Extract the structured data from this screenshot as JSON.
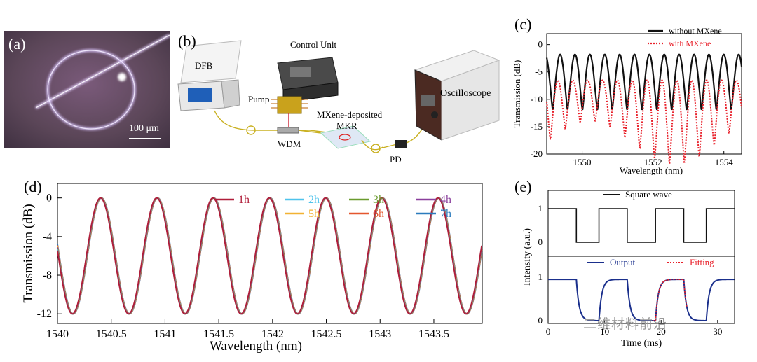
{
  "panel_labels": {
    "a": "(a)",
    "b": "(b)",
    "c": "(c)",
    "d": "(d)",
    "e": "(e)"
  },
  "micrograph": {
    "scale_text": "100 μm"
  },
  "setup": {
    "dfb": "DFB",
    "control_unit": "Control Unit",
    "pump": "Pump",
    "wdm": "WDM",
    "mkr_line1": "MXene-deposited",
    "mkr_line2": "MKR",
    "pd": "PD",
    "oscilloscope": "Oscilloscope"
  },
  "watermark": "二维材料前沿",
  "chart_data": [
    {
      "id": "c",
      "type": "line",
      "xlabel": "Wavelength (nm)",
      "ylabel": "Transmission (dB)",
      "xlim": [
        1549,
        1554.5
      ],
      "ylim": [
        -20,
        2
      ],
      "xticks": [
        "1550",
        "1552",
        "1554"
      ],
      "yticks": [
        "0",
        "-5",
        "-10",
        "-15",
        "-20"
      ],
      "legend_position": "top-right",
      "series": [
        {
          "name": "without MXene",
          "color": "#111111",
          "dash": "solid",
          "period_nm": 0.42,
          "max_db": -1.8,
          "min_db": -12.0,
          "phase": 0.1
        },
        {
          "name": "with MXene",
          "color": "#e8202a",
          "dash": "dotted",
          "period_nm": 0.42,
          "max_db": -6.5,
          "min_db": -18.0,
          "phase": 0.25
        }
      ]
    },
    {
      "id": "d",
      "type": "line",
      "xlabel": "Wavelength (nm)",
      "ylabel": "Transmission (dB)",
      "xlim": [
        1540,
        1543.95
      ],
      "ylim": [
        -13,
        1.5
      ],
      "xticks": [
        "1540",
        "1540.5",
        "1541",
        "1541.5",
        "1542",
        "1542.5",
        "1543",
        "1543.5"
      ],
      "yticks": [
        "0",
        "-4",
        "-8",
        "-12"
      ],
      "legend_position": "top",
      "period_nm": 0.523,
      "max_db": 0,
      "min_db": -12,
      "series": [
        {
          "name": "1h",
          "color": "#b01e3a"
        },
        {
          "name": "2h",
          "color": "#4fc3ec"
        },
        {
          "name": "3h",
          "color": "#6a9b2e"
        },
        {
          "name": "4h",
          "color": "#8a3f9c"
        },
        {
          "name": "5h",
          "color": "#f2b233"
        },
        {
          "name": "6h",
          "color": "#e4572e"
        },
        {
          "name": "7h",
          "color": "#2b7bbd"
        }
      ]
    },
    {
      "id": "e",
      "type": "line",
      "xlabel": "Time (ms)",
      "ylabel": "Intensity (a.u.)",
      "xlim": [
        0,
        33
      ],
      "xticks": [
        "0",
        "10",
        "20",
        "30"
      ],
      "top_yticks": [
        "1",
        "0"
      ],
      "bottom_yticks": [
        "1",
        "0"
      ],
      "square_wave": {
        "name": "Square wave",
        "color": "#111111",
        "high_intervals": [
          [
            0,
            5
          ],
          [
            9,
            14
          ],
          [
            19,
            24
          ],
          [
            28,
            33
          ]
        ]
      },
      "output": {
        "name": "Output",
        "color": "#1a2f8c"
      },
      "fitting": {
        "name": "Fitting",
        "color": "#e8202a"
      }
    }
  ]
}
